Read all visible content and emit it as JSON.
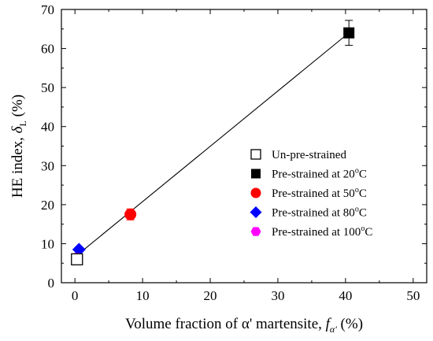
{
  "chart_data": {
    "type": "scatter",
    "x_axis": {
      "label_main": "Volume fraction of α' martensite, ",
      "label_symbol": "f",
      "label_sub": "α'",
      "label_unit": " (%)",
      "range": [
        -2,
        52
      ],
      "ticks": [
        0,
        10,
        20,
        30,
        40,
        50
      ],
      "tick_labels": [
        "0",
        "10",
        "20",
        "30",
        "40",
        "50"
      ]
    },
    "y_axis": {
      "label_main": "HE index, ",
      "label_symbol": "δ",
      "label_sub": "L",
      "label_unit": " (%)",
      "range": [
        0,
        70
      ],
      "ticks": [
        0,
        10,
        20,
        30,
        40,
        50,
        60,
        70
      ],
      "tick_labels": [
        "0",
        "10",
        "20",
        "30",
        "40",
        "50",
        "60",
        "70"
      ]
    },
    "grid": false,
    "legend_position": "center-right",
    "series": [
      {
        "name": "Un-pre-strained",
        "marker": "square-open",
        "color": "#000000",
        "points": [
          {
            "x": 0.3,
            "y": 6.0,
            "err": 0.8
          }
        ]
      },
      {
        "name_main": "Pre-strained at 20",
        "name_sup": "o",
        "name_end": "C",
        "marker": "square",
        "color": "#000000",
        "points": [
          {
            "x": 40.5,
            "y": 64.0,
            "err": 3.2
          }
        ]
      },
      {
        "name_main": "Pre-strained at 50",
        "name_sup": "o",
        "name_end": "C",
        "marker": "circle",
        "color": "#ff0000",
        "points": [
          {
            "x": 8.2,
            "y": 17.5,
            "err": 1.4
          }
        ]
      },
      {
        "name_main": "Pre-strained at 80",
        "name_sup": "o",
        "name_end": "C",
        "marker": "diamond",
        "color": "#0000ff",
        "points": [
          {
            "x": 0.6,
            "y": 8.5,
            "err": 0.6
          }
        ]
      },
      {
        "name_main": "Pre-strained at 100",
        "name_sup": "o",
        "name_end": "C",
        "marker": "hexagon",
        "color": "#ff00ff",
        "points": [
          {
            "x": 0.3,
            "y": 6.3,
            "err": 0.5
          }
        ]
      }
    ],
    "fit_line": {
      "x": [
        0.0,
        40.5
      ],
      "y": [
        6.6,
        64.0
      ],
      "color": "#000000"
    }
  }
}
